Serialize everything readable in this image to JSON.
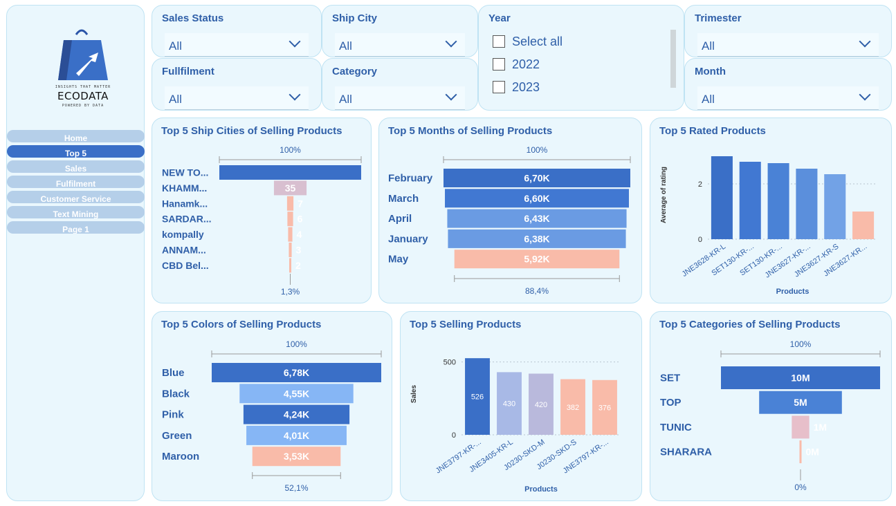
{
  "brand": {
    "tagline": "INSIGHTS THAT MATTER",
    "name": "ECODATA",
    "sub": "POWERED BY DATA",
    "colors": {
      "primary": "#3a6fc7",
      "panel": "#eaf7fd",
      "accent": "#f9bba9"
    }
  },
  "nav": [
    {
      "label": "Home"
    },
    {
      "label": "Top 5"
    },
    {
      "label": "Sales"
    },
    {
      "label": "Fulfilment"
    },
    {
      "label": "Customer Service"
    },
    {
      "label": "Text Mining"
    },
    {
      "label": "Page 1"
    }
  ],
  "slicers": {
    "sales_status": {
      "title": "Sales Status",
      "value": "All"
    },
    "ship_city": {
      "title": "Ship City",
      "value": "All"
    },
    "fulfilment": {
      "title": "Fullfilment",
      "value": "All"
    },
    "category": {
      "title": "Category",
      "value": "All"
    },
    "year": {
      "title": "Year",
      "options": [
        "Select all",
        "2022",
        "2023"
      ]
    },
    "trimester": {
      "title": "Trimester",
      "value": "All"
    },
    "month": {
      "title": "Month",
      "value": "All"
    }
  },
  "chart_data": [
    {
      "id": "ship_cities",
      "type": "bar",
      "title": "Top 5 Ship Cities of Selling Products",
      "categories": [
        "NEW TO...",
        "KHAMM...",
        "Hanamk...",
        "SARDAR...",
        "kompally",
        "ANNAM...",
        "CBD Bel..."
      ],
      "values": [
        null,
        35,
        7,
        6,
        4,
        3,
        2
      ],
      "top_label": "100%",
      "bottom_label": "1,3%",
      "colors": [
        "#3a6fc7",
        "#d8bfd0",
        "#f9bba9",
        "#f9bba9",
        "#f9bba9",
        "#f9bba9",
        "#f9bba9"
      ],
      "bar_fractions": [
        1.0,
        0.23,
        0.045,
        0.04,
        0.03,
        0.02,
        0.013
      ]
    },
    {
      "id": "months",
      "type": "bar",
      "title": "Top 5 Months of Selling Products",
      "categories": [
        "February",
        "March",
        "April",
        "January",
        "May"
      ],
      "values": [
        6700,
        6600,
        6430,
        6380,
        5920
      ],
      "labels": [
        "6,70K",
        "6,60K",
        "6,43K",
        "6,38K",
        "5,92K"
      ],
      "top_label": "100%",
      "bottom_label": "88,4%",
      "colors": [
        "#3a6fc7",
        "#4178d2",
        "#6a9be3",
        "#6a9be3",
        "#f9bba9"
      ]
    },
    {
      "id": "rated",
      "type": "bar",
      "title": "Top 5 Rated Products",
      "categories": [
        "JNE3628-KR-L",
        "SET130-KR-...",
        "SET130-KR-...",
        "JNE3627-KR-...",
        "JNE3627-KR-S",
        "JNE3627-KR..."
      ],
      "values": [
        3.0,
        2.8,
        2.75,
        2.55,
        2.35,
        1.0
      ],
      "ylabel": "Average of rating",
      "xlabel": "Products",
      "yticks": [
        0,
        2
      ],
      "ylim": [
        0,
        3.2
      ],
      "colors": [
        "#3a6fc7",
        "#4178d2",
        "#4a82d6",
        "#5b8fdc",
        "#72a2e6",
        "#f9bba9"
      ]
    },
    {
      "id": "colors",
      "type": "bar",
      "title": "Top 5 Colors of Selling Products",
      "categories": [
        "Blue",
        "Black",
        "Pink",
        "Green",
        "Maroon"
      ],
      "values": [
        6780,
        4550,
        4240,
        4010,
        3530
      ],
      "labels": [
        "6,78K",
        "4,55K",
        "4,24K",
        "4,01K",
        "3,53K"
      ],
      "top_label": "100%",
      "bottom_label": "52,1%",
      "colors": [
        "#3a6fc7",
        "#86b6f5",
        "#3a6fc7",
        "#86b6f5",
        "#f9bba9"
      ]
    },
    {
      "id": "products",
      "type": "bar",
      "title": "Top 5 Selling Products",
      "categories": [
        "JNE3797-KR-...",
        "JNE3405-KR-L",
        "J0230-SKD-M",
        "J0230-SKD-S",
        "JNE3797-KR-..."
      ],
      "values": [
        526,
        430,
        420,
        382,
        376
      ],
      "ylabel": "Sales",
      "xlabel": "Products",
      "yticks": [
        0,
        500
      ],
      "ylim": [
        0,
        560
      ],
      "colors": [
        "#3a6fc7",
        "#a8b9e6",
        "#b9b9dc",
        "#f9bba9",
        "#f9bba9"
      ]
    },
    {
      "id": "categories",
      "type": "bar",
      "title": "Top 5 Categories of Selling Products",
      "categories": [
        "SET",
        "TOP",
        "TUNIC",
        "SHARARA"
      ],
      "values": [
        10,
        5,
        1,
        0
      ],
      "labels": [
        "10M",
        "5M",
        "1M",
        "0M"
      ],
      "top_label": "100%",
      "bottom_label": "0%",
      "colors": [
        "#3a6fc7",
        "#4a82d6",
        "#e7bfca",
        "#f9bba9"
      ],
      "bar_fractions": [
        1.0,
        0.52,
        0.11,
        0.008
      ]
    }
  ]
}
